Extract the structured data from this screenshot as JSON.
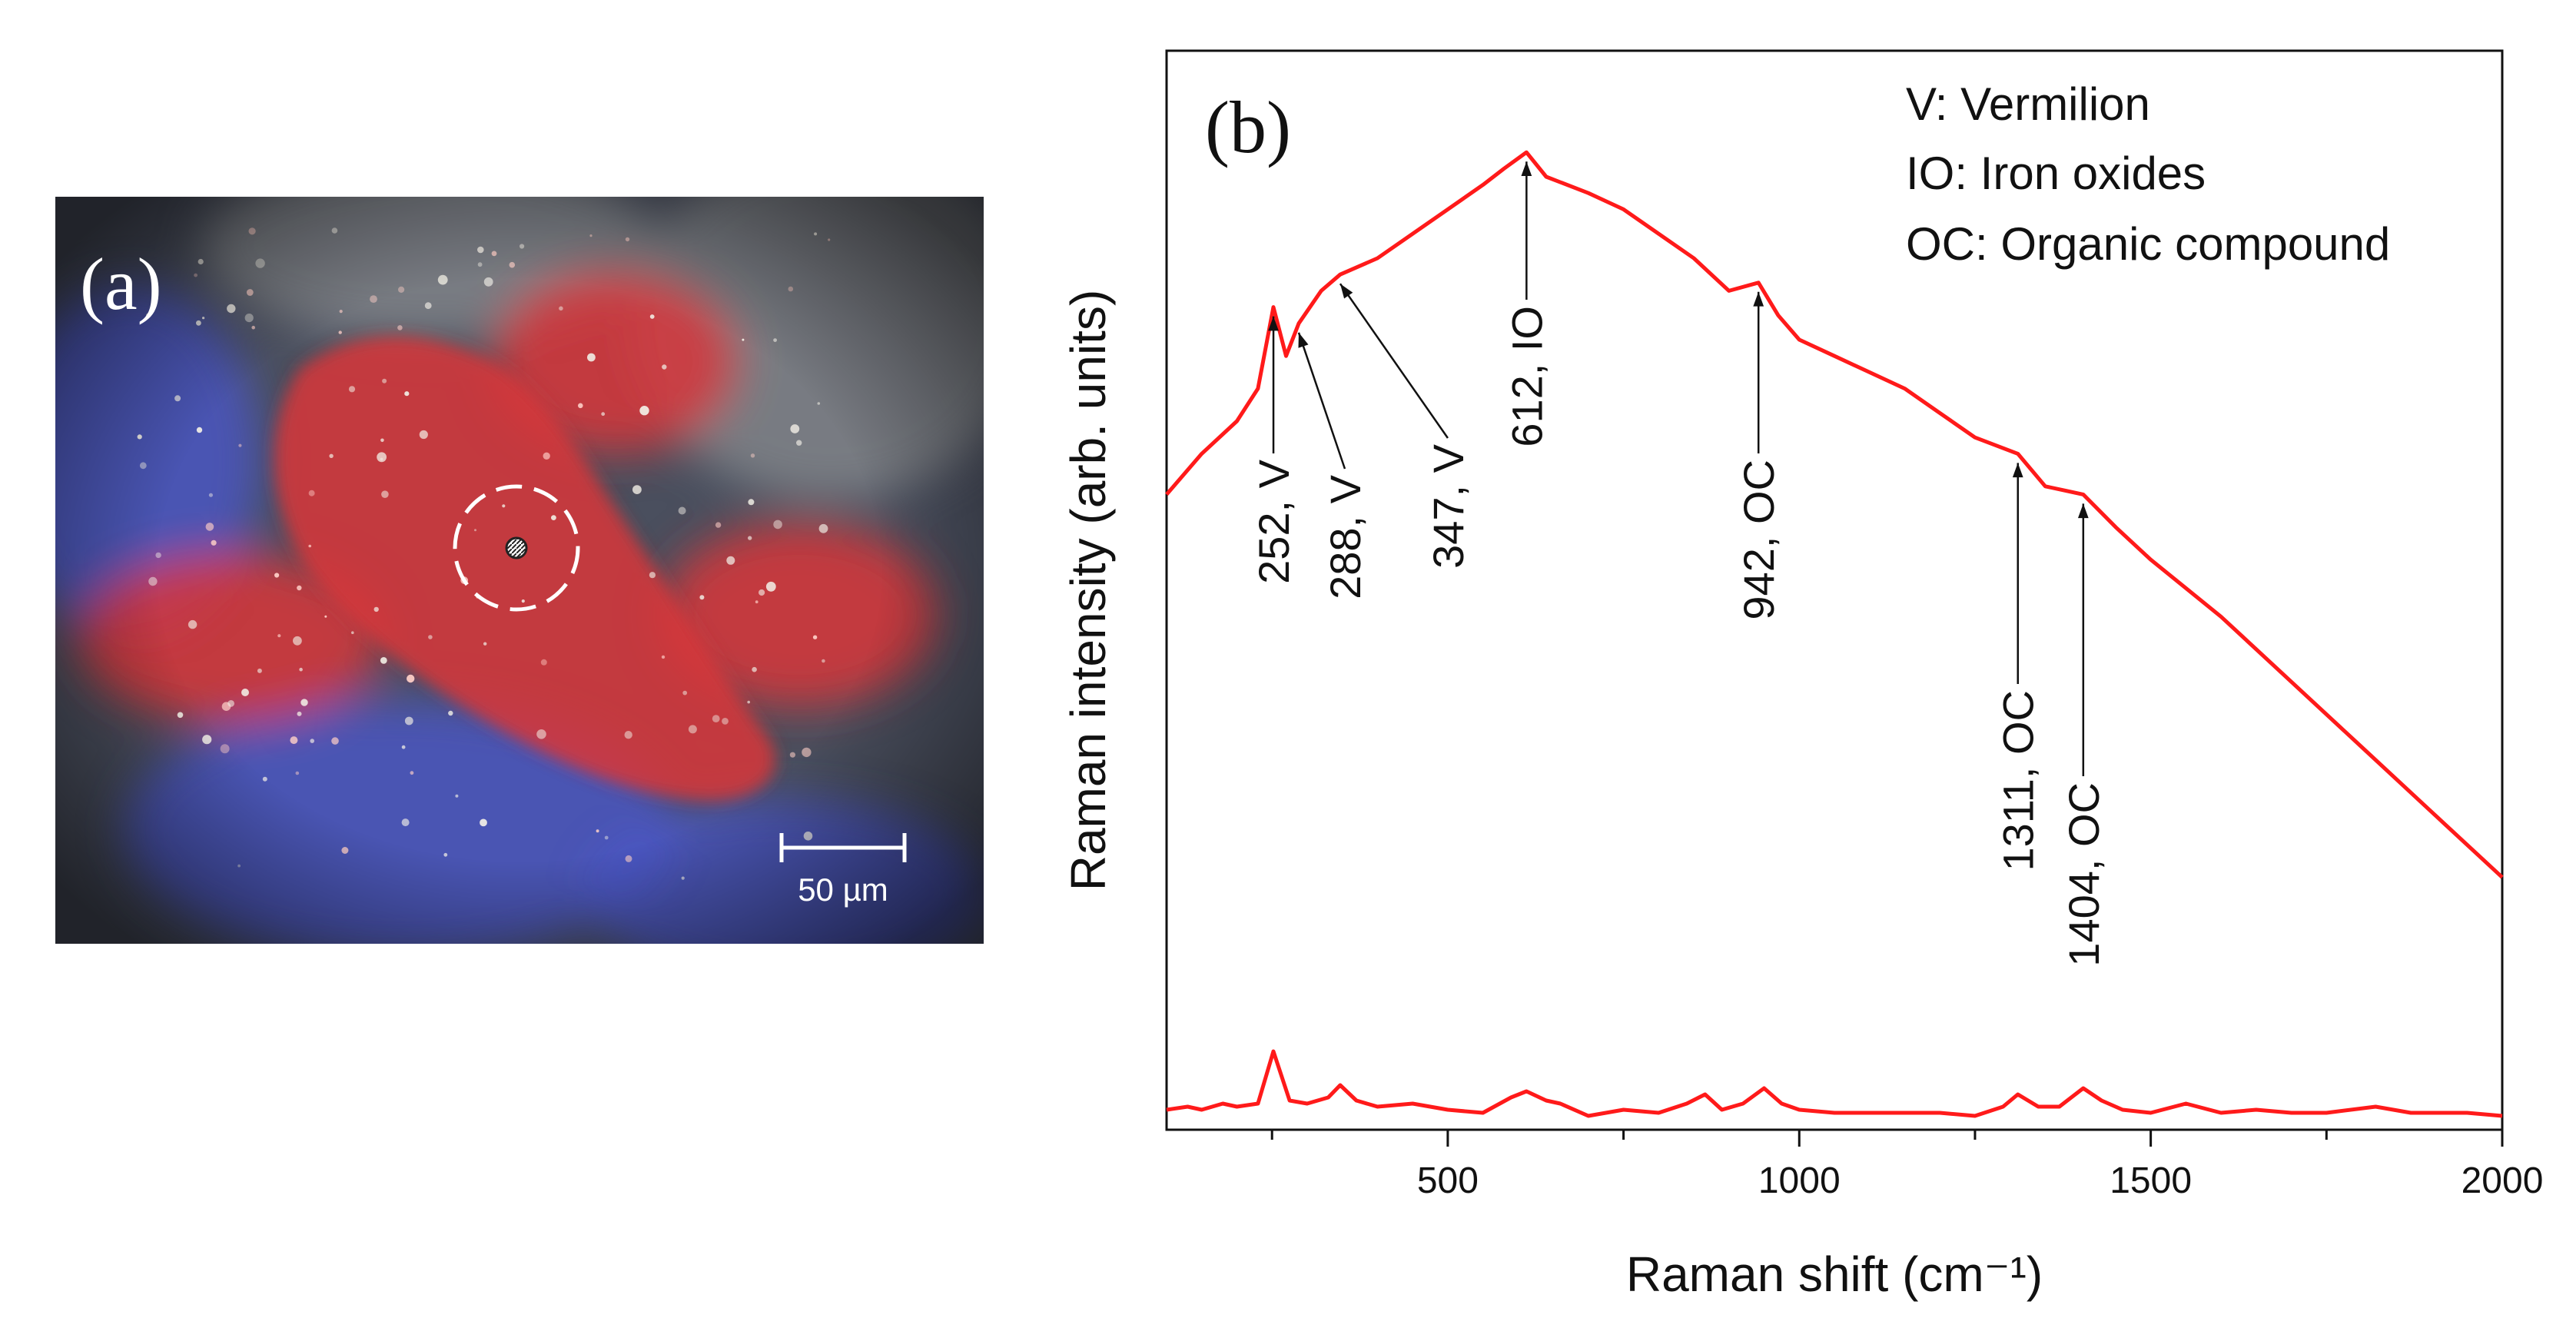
{
  "panel_a": {
    "label": "(a)",
    "scale_bar_label": "50 µm",
    "colors": {
      "background": "#4a4f5e",
      "red_pigment": "#d8353a",
      "blue_pigment": "#4b56c8",
      "gray_area": "#8c8f91",
      "marker": "#ffffff"
    }
  },
  "chart_data": {
    "type": "line",
    "panel_label": "(b)",
    "xlabel": "Raman shift (cm⁻¹)",
    "ylabel": "Raman intensity (arb. units)",
    "xlim": [
      100,
      2000
    ],
    "ylim": [
      0,
      1
    ],
    "x_ticks": [
      500,
      1000,
      1500,
      2000
    ],
    "grid": false,
    "line_color": "#ff1a1a",
    "legend_position": "top-right",
    "legend": [
      "V: Vermilion",
      "IO: Iron oxides",
      "OC: Organic compound"
    ],
    "series": [
      {
        "x": [
          100,
          150,
          200,
          230,
          252,
          270,
          288,
          320,
          347,
          400,
          450,
          500,
          550,
          580,
          612,
          640,
          700,
          750,
          800,
          850,
          900,
          942,
          970,
          1000,
          1050,
          1100,
          1150,
          1200,
          1250,
          1311,
          1350,
          1404,
          1450,
          1500,
          1600,
          1700,
          1800,
          1900,
          2000
        ],
        "values": [
          0.61,
          0.66,
          0.7,
          0.74,
          0.84,
          0.78,
          0.82,
          0.86,
          0.88,
          0.9,
          0.93,
          0.96,
          0.99,
          1.01,
          1.03,
          1.0,
          0.98,
          0.96,
          0.93,
          0.9,
          0.86,
          0.87,
          0.83,
          0.8,
          0.78,
          0.76,
          0.74,
          0.71,
          0.68,
          0.66,
          0.62,
          0.61,
          0.57,
          0.53,
          0.46,
          0.38,
          0.3,
          0.22,
          0.14
        ]
      },
      {
        "x": [
          100,
          130,
          150,
          180,
          200,
          230,
          252,
          275,
          300,
          330,
          347,
          370,
          400,
          450,
          500,
          550,
          590,
          612,
          640,
          660,
          700,
          750,
          800,
          840,
          866,
          890,
          920,
          950,
          975,
          1000,
          1050,
          1100,
          1200,
          1250,
          1290,
          1311,
          1340,
          1370,
          1404,
          1430,
          1460,
          1500,
          1550,
          1600,
          1650,
          1700,
          1750,
          1820,
          1870,
          1900,
          1950,
          2000
        ],
        "values": [
          0.04,
          0.05,
          0.04,
          0.06,
          0.05,
          0.06,
          0.23,
          0.07,
          0.06,
          0.08,
          0.12,
          0.07,
          0.05,
          0.06,
          0.04,
          0.03,
          0.08,
          0.1,
          0.07,
          0.06,
          0.02,
          0.04,
          0.03,
          0.06,
          0.09,
          0.04,
          0.06,
          0.11,
          0.06,
          0.04,
          0.03,
          0.03,
          0.03,
          0.02,
          0.05,
          0.09,
          0.05,
          0.05,
          0.11,
          0.07,
          0.04,
          0.03,
          0.06,
          0.03,
          0.04,
          0.03,
          0.03,
          0.05,
          0.03,
          0.03,
          0.03,
          0.02
        ]
      }
    ],
    "annotations": [
      {
        "label": "252, V",
        "x": 252
      },
      {
        "label": "288, V",
        "x": 288
      },
      {
        "label": "347, V",
        "x": 347
      },
      {
        "label": "612, IO",
        "x": 612
      },
      {
        "label": "942, OC",
        "x": 942
      },
      {
        "label": "1311, OC",
        "x": 1311
      },
      {
        "label": "1404, OC",
        "x": 1404
      }
    ]
  }
}
